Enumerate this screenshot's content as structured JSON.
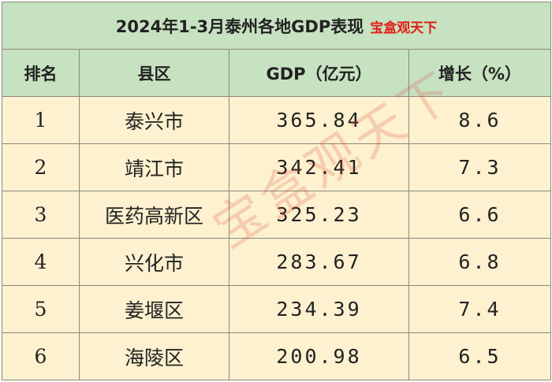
{
  "table": {
    "title": "2024年1-3月泰州各地GDP表现",
    "brand": "宝盒观天下",
    "headers": [
      "排名",
      "县区",
      "GDP（亿元）",
      "增长（%）"
    ],
    "rows": [
      [
        "1",
        "泰兴市",
        "365.84",
        "8.6"
      ],
      [
        "2",
        "靖江市",
        "342.41",
        "7.3"
      ],
      [
        "3",
        "医药高新区",
        "325.23",
        "6.6"
      ],
      [
        "4",
        "兴化市",
        "283.67",
        "6.8"
      ],
      [
        "5",
        "姜堰区",
        "234.39",
        "7.4"
      ],
      [
        "6",
        "海陵区",
        "200.98",
        "6.5"
      ]
    ]
  },
  "watermark": "宝盒观天下",
  "colors": {
    "header_bg": "#c7e2c0",
    "row_bg": "#fdf1cf",
    "brand": "#e0201a"
  }
}
